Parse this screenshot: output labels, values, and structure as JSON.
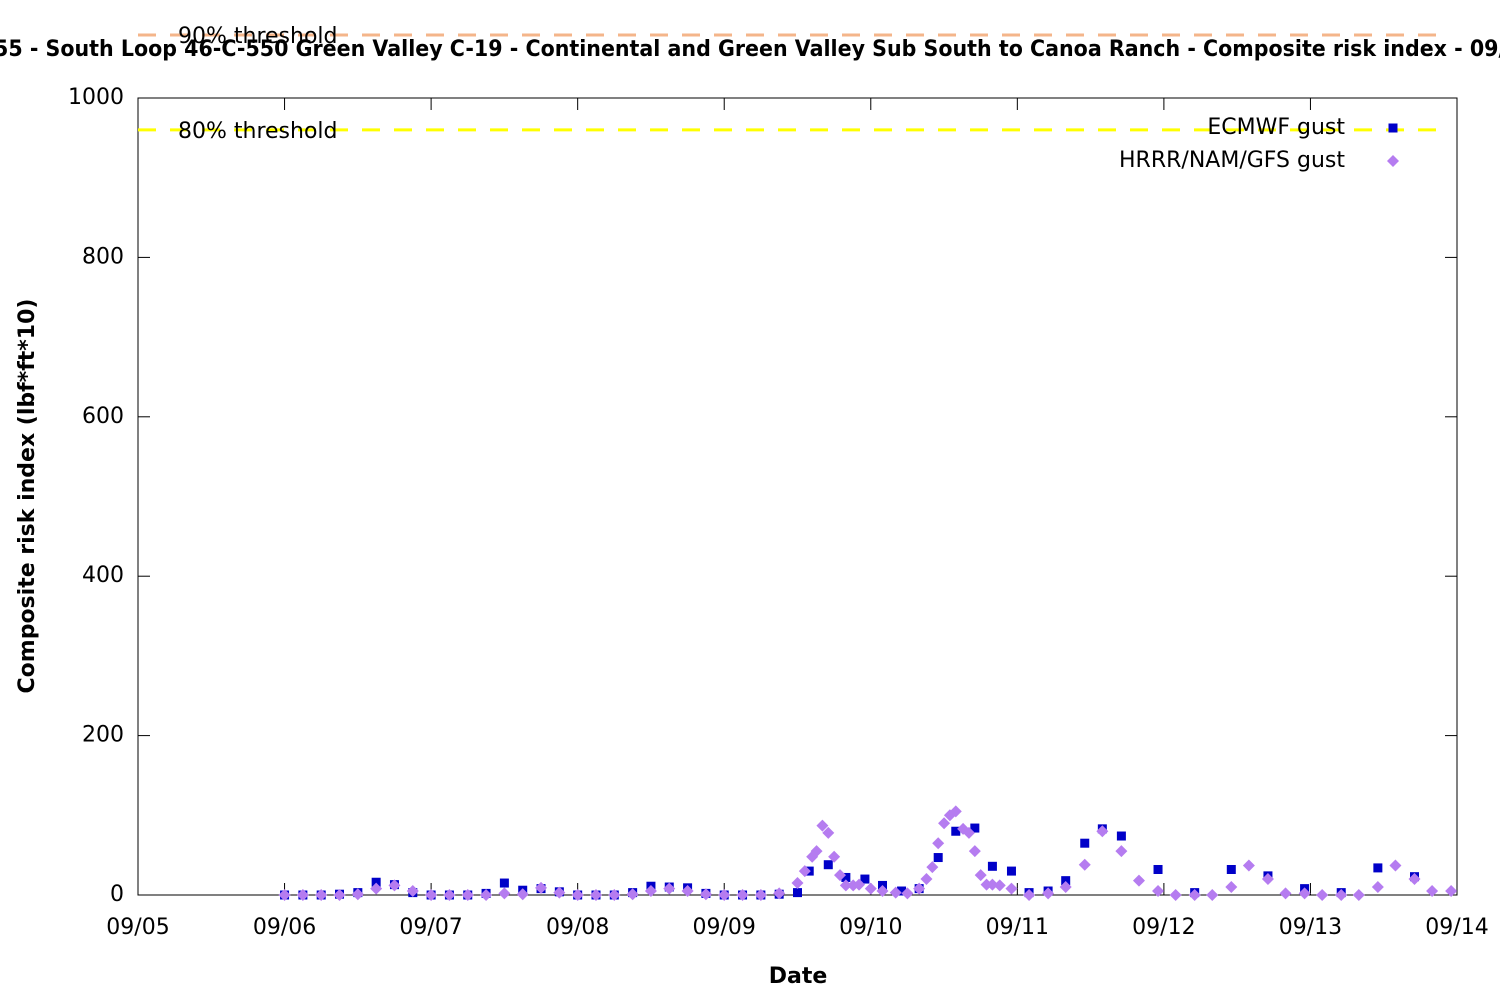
{
  "chart_data": {
    "type": "scatter",
    "title": "55 - South Loop 46-C-550 Green Valley C-19 - Continental and Green Valley Sub South to Canoa Ranch - Composite risk index - 09/",
    "xlabel": "Date",
    "ylabel": "Composite risk index (lbf*ft*10)",
    "xlim": [
      5,
      14
    ],
    "ylim": [
      0,
      1000
    ],
    "xticks": [
      {
        "value": 5,
        "label": "09/05"
      },
      {
        "value": 6,
        "label": "09/06"
      },
      {
        "value": 7,
        "label": "09/07"
      },
      {
        "value": 8,
        "label": "09/08"
      },
      {
        "value": 9,
        "label": "09/09"
      },
      {
        "value": 10,
        "label": "09/10"
      },
      {
        "value": 11,
        "label": "09/11"
      },
      {
        "value": 12,
        "label": "09/12"
      },
      {
        "value": 13,
        "label": "09/13"
      },
      {
        "value": 14,
        "label": "09/14"
      }
    ],
    "yticks": [
      0,
      200,
      400,
      600,
      800,
      1000
    ],
    "legend": "top-right",
    "thresholds": [
      {
        "name": "90% threshold",
        "value": 1079,
        "color": "#f4b58a"
      },
      {
        "name": "80% threshold",
        "value": 960,
        "color": "#ffff00"
      }
    ],
    "series": [
      {
        "name": "ECMWF gust",
        "color": "#0000c8",
        "marker": "square",
        "x": [
          6.0,
          6.125,
          6.25,
          6.375,
          6.5,
          6.625,
          6.75,
          6.875,
          7.0,
          7.125,
          7.25,
          7.375,
          7.5,
          7.625,
          7.75,
          7.875,
          8.0,
          8.125,
          8.25,
          8.375,
          8.5,
          8.625,
          8.75,
          8.875,
          9.0,
          9.125,
          9.25,
          9.375,
          9.5,
          9.58,
          9.71,
          9.83,
          9.96,
          10.08,
          10.21,
          10.33,
          10.46,
          10.58,
          10.71,
          10.83,
          10.96,
          11.08,
          11.21,
          11.33,
          11.46,
          11.58,
          11.71,
          11.96,
          12.21,
          12.46,
          12.71,
          12.96,
          13.21,
          13.46,
          13.71
        ],
        "values": [
          0,
          0,
          0,
          1,
          3,
          16,
          13,
          3,
          0,
          0,
          0,
          2,
          15,
          6,
          8,
          4,
          0,
          0,
          0,
          3,
          11,
          10,
          9,
          2,
          0,
          0,
          0,
          1,
          3,
          30,
          38,
          22,
          20,
          12,
          5,
          8,
          47,
          80,
          84,
          36,
          30,
          3,
          5,
          18,
          65,
          83,
          74,
          32,
          3,
          32,
          24,
          8,
          3,
          34,
          23
        ]
      },
      {
        "name": "HRRR/NAM/GFS gust",
        "color": "#b57cf0",
        "marker": "diamond",
        "x": [
          6.0,
          6.125,
          6.25,
          6.375,
          6.5,
          6.625,
          6.75,
          6.875,
          7.0,
          7.125,
          7.25,
          7.375,
          7.5,
          7.625,
          7.75,
          7.875,
          8.0,
          8.125,
          8.25,
          8.375,
          8.5,
          8.625,
          8.75,
          8.875,
          9.0,
          9.125,
          9.25,
          9.375,
          9.5,
          9.55,
          9.6,
          9.63,
          9.67,
          9.71,
          9.75,
          9.79,
          9.83,
          9.88,
          9.92,
          10.0,
          10.08,
          10.17,
          10.25,
          10.33,
          10.38,
          10.42,
          10.46,
          10.5,
          10.54,
          10.58,
          10.63,
          10.67,
          10.71,
          10.75,
          10.79,
          10.83,
          10.88,
          10.96,
          11.08,
          11.21,
          11.33,
          11.46,
          11.58,
          11.71,
          11.83,
          11.96,
          12.08,
          12.21,
          12.33,
          12.46,
          12.58,
          12.71,
          12.83,
          12.96,
          13.08,
          13.21,
          13.33,
          13.46,
          13.58,
          13.71,
          13.83,
          13.96
        ],
        "values": [
          0,
          0,
          0,
          0,
          1,
          8,
          12,
          5,
          0,
          0,
          0,
          0,
          2,
          1,
          9,
          3,
          0,
          0,
          0,
          1,
          5,
          8,
          5,
          1,
          0,
          0,
          0,
          2,
          15,
          30,
          48,
          55,
          87,
          78,
          48,
          25,
          12,
          12,
          13,
          8,
          5,
          3,
          2,
          8,
          20,
          35,
          65,
          90,
          100,
          105,
          83,
          78,
          55,
          25,
          13,
          13,
          12,
          8,
          0,
          2,
          10,
          38,
          80,
          55,
          18,
          5,
          0,
          0,
          0,
          10,
          37,
          20,
          2,
          2,
          0,
          0,
          0,
          10,
          37,
          20,
          5,
          5
        ]
      }
    ]
  }
}
